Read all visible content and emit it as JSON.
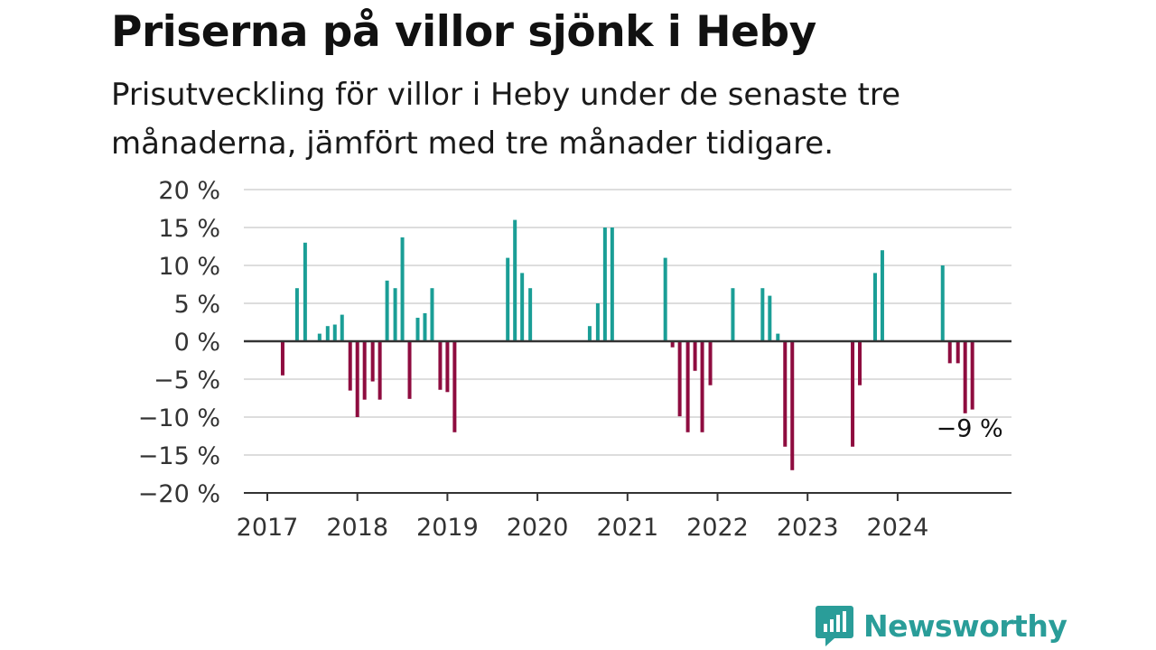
{
  "header": {
    "title": "Priserna på villor sjönk i Heby",
    "subtitle": "Prisutveckling för villor i Heby under de senaste tre månaderna, jämfört med tre månader tidigare."
  },
  "brand": {
    "name": "Newsworthy",
    "color": "#2a9d99",
    "icon": "bar-chart-speech-bubble-icon"
  },
  "chart_data": {
    "type": "bar",
    "title": "Priserna på villor sjönk i Heby",
    "subtitle": "Prisutveckling för villor i Heby under de senaste tre månaderna, jämfört med tre månader tidigare.",
    "xlabel": "",
    "ylabel": "",
    "x_unit": "year",
    "xlim": [
      2016.75,
      2025.2
    ],
    "ylim": [
      -20,
      20
    ],
    "y_ticks": [
      20,
      15,
      10,
      5,
      0,
      -5,
      -10,
      -15,
      -20
    ],
    "y_tick_labels": [
      "20 %",
      "15 %",
      "10 %",
      "5 %",
      "0 %",
      "−5 %",
      "−10 %",
      "−15 %",
      "−20 %"
    ],
    "x_ticks": [
      2017,
      2018,
      2019,
      2020,
      2021,
      2022,
      2023,
      2024
    ],
    "x_tick_labels": [
      "2017",
      "2018",
      "2019",
      "2020",
      "2021",
      "2022",
      "2023",
      "2024"
    ],
    "grid": true,
    "legend": "none",
    "colors": {
      "positive": "#1a9e96",
      "negative": "#8e0c3f",
      "grid": "#dddddd",
      "axis": "#333333"
    },
    "annotation": {
      "text": "−9 %",
      "x": 2024.83,
      "y": -9
    },
    "series": [
      {
        "x": [
          2017.17,
          2017.33,
          2017.42,
          2017.58,
          2017.67,
          2017.75,
          2017.83,
          2017.92,
          2018.0,
          2018.08,
          2018.17,
          2018.25,
          2018.33,
          2018.42,
          2018.5,
          2018.58,
          2018.67,
          2018.75,
          2018.83,
          2018.92,
          2019.0,
          2019.08,
          2019.67,
          2019.75,
          2019.83,
          2019.92,
          2020.58,
          2020.67,
          2020.75,
          2020.83,
          2021.42,
          2021.5,
          2021.58,
          2021.67,
          2021.75,
          2021.83,
          2021.92,
          2022.17,
          2022.5,
          2022.58,
          2022.67,
          2022.75,
          2022.83,
          2023.5,
          2023.58,
          2023.75,
          2023.83,
          2024.5,
          2024.58,
          2024.67,
          2024.75,
          2024.83
        ],
        "values": [
          -4.5,
          7,
          13,
          1,
          2,
          2.2,
          3.5,
          -6.5,
          -10,
          -7.7,
          -5.3,
          -7.7,
          8,
          7,
          13.7,
          -7.6,
          3.1,
          3.7,
          7,
          -6.4,
          -6.7,
          -12,
          11,
          16,
          9,
          7,
          2,
          5,
          15,
          15,
          11,
          -0.8,
          -9.9,
          -12,
          -3.9,
          -12,
          -5.8,
          7,
          7,
          6,
          1,
          -13.9,
          -17,
          -13.9,
          -5.8,
          9,
          12,
          10,
          -2.9,
          -2.9,
          -9.5,
          -9
        ]
      }
    ]
  }
}
